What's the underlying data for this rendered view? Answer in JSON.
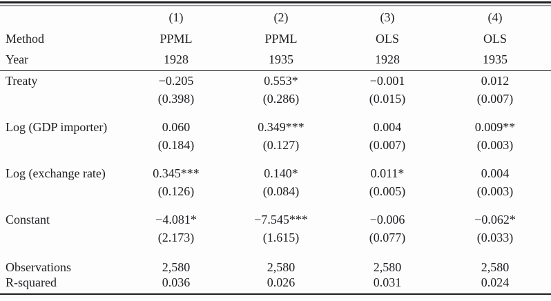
{
  "table": {
    "column_headers": [
      "(1)",
      "(2)",
      "(3)",
      "(4)"
    ],
    "method_label": "Method",
    "methods": [
      "PPML",
      "PPML",
      "OLS",
      "OLS"
    ],
    "year_label": "Year",
    "years": [
      "1928",
      "1935",
      "1928",
      "1935"
    ],
    "variables": [
      {
        "label": "Treaty",
        "estimates": [
          "−0.205",
          "0.553*",
          "−0.001",
          "0.012"
        ],
        "std_errors": [
          "(0.398)",
          "(0.286)",
          "(0.015)",
          "(0.007)"
        ]
      },
      {
        "label": "Log (GDP importer)",
        "estimates": [
          "0.060",
          "0.349***",
          "0.004",
          "0.009**"
        ],
        "std_errors": [
          "(0.184)",
          "(0.127)",
          "(0.007)",
          "(0.003)"
        ]
      },
      {
        "label": "Log (exchange rate)",
        "estimates": [
          "0.345***",
          "0.140*",
          "0.011*",
          "0.004"
        ],
        "std_errors": [
          "(0.126)",
          "(0.084)",
          "(0.005)",
          "(0.003)"
        ]
      },
      {
        "label": "Constant",
        "estimates": [
          "−4.081*",
          "−7.545***",
          "−0.006",
          "−0.062*"
        ],
        "std_errors": [
          "(2.173)",
          "(1.615)",
          "(0.077)",
          "(0.033)"
        ]
      }
    ],
    "stats": [
      {
        "label": "Observations",
        "values": [
          "2,580",
          "2,580",
          "2,580",
          "2,580"
        ]
      },
      {
        "label": "R-squared",
        "values": [
          "0.036",
          "0.026",
          "0.031",
          "0.024"
        ]
      }
    ],
    "text_color": "#1e1e22"
  }
}
